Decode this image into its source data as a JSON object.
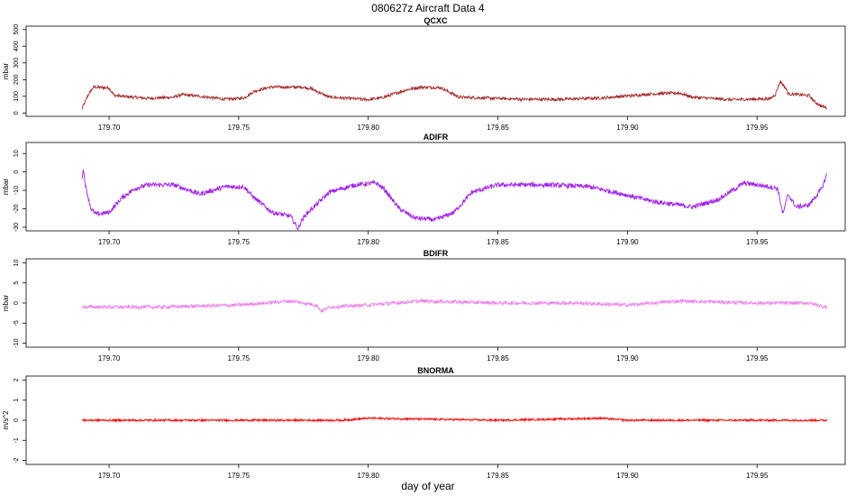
{
  "figure": {
    "title": "080627z   Aircraft Data 4",
    "xlabel": "day of year"
  },
  "chart_data": [
    {
      "type": "line",
      "title": "QCXC",
      "ylabel": "mbar",
      "color": "#a52a2a",
      "xlim": [
        179.668,
        179.984
      ],
      "ylim": [
        -20,
        520
      ],
      "yticks": [
        0,
        100,
        200,
        300,
        400,
        500
      ],
      "xticks": [
        "179.70",
        "179.75",
        "179.80",
        "179.85",
        "179.90",
        "179.95"
      ],
      "show_xtick_labels": true,
      "noise": 0.5,
      "series": [
        {
          "x": [
            179.6895,
            179.69,
            179.692,
            179.694,
            179.7,
            179.702,
            179.705,
            179.715,
            179.725,
            179.728,
            179.735,
            179.745,
            179.752,
            179.756,
            179.762,
            179.775,
            179.778,
            179.785,
            179.8,
            179.805,
            179.815,
            179.82,
            179.828,
            179.835,
            179.86,
            179.875,
            179.89,
            179.91,
            179.92,
            179.925,
            179.94,
            179.955,
            179.957,
            179.959,
            179.961,
            179.962,
            179.97,
            179.972,
            179.975,
            179.977
          ],
          "y": [
            20,
            40,
            110,
            155,
            150,
            105,
            100,
            88,
            95,
            110,
            100,
            82,
            90,
            130,
            155,
            155,
            145,
            95,
            80,
            90,
            140,
            155,
            152,
            95,
            82,
            82,
            90,
            115,
            120,
            95,
            80,
            85,
            110,
            190,
            150,
            115,
            105,
            70,
            40,
            30
          ]
        }
      ]
    },
    {
      "type": "line",
      "title": "ADIFR",
      "ylabel": "mbar",
      "color": "#a020f0",
      "xlim": [
        179.668,
        179.984
      ],
      "ylim": [
        -32,
        16
      ],
      "yticks": [
        -30,
        -20,
        -10,
        0,
        10
      ],
      "xticks": [
        "179.70",
        "179.75",
        "179.80",
        "179.85",
        "179.90",
        "179.95"
      ],
      "show_xtick_labels": true,
      "noise": 0.8,
      "series": [
        {
          "x": [
            179.6895,
            179.69,
            179.691,
            179.693,
            179.695,
            179.7,
            179.705,
            179.71,
            179.715,
            179.725,
            179.735,
            179.745,
            179.752,
            179.756,
            179.763,
            179.77,
            179.773,
            179.774,
            179.776,
            179.785,
            179.795,
            179.803,
            179.806,
            179.812,
            179.818,
            179.826,
            179.833,
            179.84,
            179.85,
            179.87,
            179.885,
            179.895,
            179.91,
            179.925,
            179.935,
            179.945,
            179.955,
            179.958,
            179.96,
            179.962,
            179.965,
            179.97,
            179.975,
            179.977
          ],
          "y": [
            -5,
            2,
            -8,
            -20,
            -23,
            -22,
            -14,
            -9,
            -7,
            -7,
            -12,
            -8,
            -8,
            -14,
            -22,
            -24,
            -31,
            -27,
            -23,
            -11,
            -7,
            -6,
            -9,
            -20,
            -25,
            -26,
            -22,
            -11,
            -7,
            -7,
            -8,
            -11,
            -16,
            -19,
            -15,
            -6,
            -8,
            -9,
            -23,
            -12,
            -19,
            -18,
            -9,
            -1
          ]
        }
      ]
    },
    {
      "type": "line",
      "title": "BDIFR",
      "ylabel": "mbar",
      "color": "#ee82ee",
      "xlim": [
        179.668,
        179.984
      ],
      "ylim": [
        -11,
        11
      ],
      "yticks": [
        -10,
        -5,
        0,
        5,
        10
      ],
      "xticks": [
        "179.70",
        "179.75",
        "179.80",
        "179.85",
        "179.90",
        "179.95"
      ],
      "show_xtick_labels": true,
      "noise": 0.6,
      "series": [
        {
          "x": [
            179.6895,
            179.7,
            179.72,
            179.75,
            179.77,
            179.78,
            179.782,
            179.785,
            179.8,
            179.82,
            179.85,
            179.88,
            179.9,
            179.92,
            179.95,
            179.96,
            179.97,
            179.977
          ],
          "y": [
            -1,
            -1,
            -1,
            -0.5,
            0.5,
            -0.5,
            -2,
            -1,
            -0.5,
            0.5,
            0,
            0,
            -0.5,
            0.5,
            0,
            0,
            0,
            -1
          ]
        }
      ]
    },
    {
      "type": "line",
      "title": "BNORMA",
      "ylabel": "m/s^2",
      "color": "#ff0000",
      "xlim": [
        179.668,
        179.984
      ],
      "ylim": [
        -2.2,
        2.2
      ],
      "yticks": [
        -2,
        -1,
        0,
        1,
        2
      ],
      "xticks": [
        "179.70",
        "179.75",
        "179.80",
        "179.85",
        "179.90",
        "179.95"
      ],
      "show_xtick_labels": true,
      "noise": 0.35,
      "series": [
        {
          "x": [
            179.6895,
            179.7,
            179.75,
            179.79,
            179.8,
            179.85,
            179.89,
            179.9,
            179.95,
            179.977
          ],
          "y": [
            0,
            0,
            0,
            0,
            0.1,
            0,
            0.1,
            0,
            0,
            0
          ]
        }
      ]
    }
  ]
}
